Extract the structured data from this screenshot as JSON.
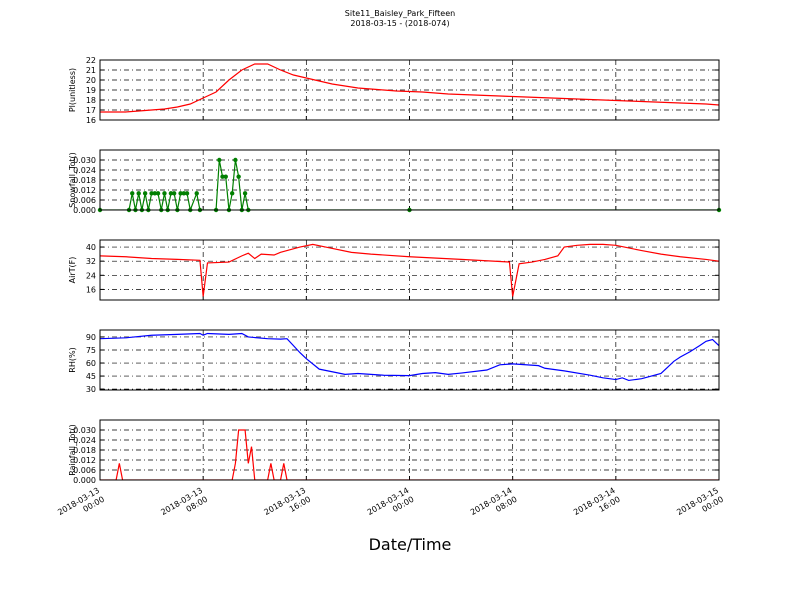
{
  "chart_data": [
    {
      "type": "line",
      "title": "Site11_Baisley_Park_Fifteen",
      "subtitle": "2018-03-15 - (2018-074)",
      "ylabel": "Pl(unitless)",
      "color": "#ff0000",
      "ylim": [
        16,
        22
      ],
      "yticks": [
        16,
        17,
        18,
        19,
        20,
        21,
        22
      ],
      "x": [
        "2018-03-13 00:00",
        "2018-03-13 01:00",
        "2018-03-13 02:00",
        "2018-03-13 03:00",
        "2018-03-13 04:00",
        "2018-03-13 05:00",
        "2018-03-13 06:00",
        "2018-03-13 07:00",
        "2018-03-13 08:00",
        "2018-03-13 09:00",
        "2018-03-13 10:00",
        "2018-03-13 11:00",
        "2018-03-13 12:00",
        "2018-03-13 13:00",
        "2018-03-13 14:00",
        "2018-03-13 15:00",
        "2018-03-13 16:00",
        "2018-03-13 17:00",
        "2018-03-13 18:00",
        "2018-03-13 19:00",
        "2018-03-13 20:00",
        "2018-03-13 21:00",
        "2018-03-13 22:00",
        "2018-03-13 23:00",
        "2018-03-14 00:00",
        "2018-03-14 01:00",
        "2018-03-14 02:00",
        "2018-03-14 03:00",
        "2018-03-14 04:00",
        "2018-03-14 05:00",
        "2018-03-14 06:00",
        "2018-03-14 07:00",
        "2018-03-14 08:00",
        "2018-03-14 09:00",
        "2018-03-14 10:00",
        "2018-03-14 11:00",
        "2018-03-14 12:00",
        "2018-03-14 13:00",
        "2018-03-14 14:00",
        "2018-03-14 15:00",
        "2018-03-14 16:00",
        "2018-03-14 17:00",
        "2018-03-14 18:00",
        "2018-03-14 19:00",
        "2018-03-14 20:00",
        "2018-03-14 21:00",
        "2018-03-14 22:00",
        "2018-03-14 23:00",
        "2018-03-15 00:00"
      ],
      "values": [
        16.8,
        16.8,
        16.8,
        16.9,
        17.0,
        17.1,
        17.3,
        17.6,
        18.2,
        18.8,
        20.0,
        21.0,
        21.6,
        21.6,
        21.0,
        20.5,
        20.2,
        19.9,
        19.6,
        19.4,
        19.2,
        19.1,
        19.0,
        18.9,
        18.85,
        18.8,
        18.7,
        18.6,
        18.55,
        18.5,
        18.45,
        18.4,
        18.35,
        18.3,
        18.25,
        18.2,
        18.15,
        18.1,
        18.05,
        18.0,
        17.95,
        17.9,
        17.85,
        17.8,
        17.75,
        17.7,
        17.65,
        17.6,
        17.5
      ]
    },
    {
      "type": "line",
      "ylabel": "Snowfall_Tot()",
      "color": "#007f00",
      "marker": true,
      "ylim": [
        0,
        0.036
      ],
      "yticks": [
        {
          "value": 0,
          "label": "0.000"
        },
        0.006,
        0.012,
        0.018,
        0.024,
        {
          "value": 0.03,
          "label": "0.030"
        }
      ],
      "x": [
        "2018-03-13 00:00",
        "2018-03-13 02:15",
        "2018-03-13 02:30",
        "2018-03-13 02:45",
        "2018-03-13 03:00",
        "2018-03-13 03:15",
        "2018-03-13 03:30",
        "2018-03-13 03:45",
        "2018-03-13 04:00",
        "2018-03-13 04:15",
        "2018-03-13 04:30",
        "2018-03-13 04:45",
        "2018-03-13 05:00",
        "2018-03-13 05:15",
        "2018-03-13 05:30",
        "2018-03-13 05:45",
        "2018-03-13 06:00",
        "2018-03-13 06:15",
        "2018-03-13 06:30",
        "2018-03-13 06:45",
        "2018-03-13 07:00",
        "2018-03-13 07:30",
        "2018-03-13 07:45",
        "2018-03-13 09:00",
        "2018-03-13 09:15",
        "2018-03-13 09:30",
        "2018-03-13 09:45",
        "2018-03-13 10:00",
        "2018-03-13 10:15",
        "2018-03-13 10:30",
        "2018-03-13 10:45",
        "2018-03-13 11:00",
        "2018-03-13 11:15",
        "2018-03-13 11:30",
        "2018-03-14 00:00",
        "2018-03-15 00:00"
      ],
      "values": [
        0,
        0,
        0.01,
        0,
        0.01,
        0,
        0.01,
        0,
        0.01,
        0.01,
        0.01,
        0,
        0.01,
        0,
        0.01,
        0.01,
        0,
        0.01,
        0.01,
        0.01,
        0,
        0.01,
        0,
        0,
        0.03,
        0.02,
        0.02,
        0,
        0.01,
        0.03,
        0.02,
        0,
        0.01,
        0,
        0,
        0
      ]
    },
    {
      "type": "line",
      "ylabel": "AirT(F)",
      "color": "#ff0000",
      "ylim": [
        10,
        44
      ],
      "yticks": [
        16,
        24,
        32,
        40
      ],
      "x": [
        "2018-03-13 00:00",
        "2018-03-13 02:00",
        "2018-03-13 04:00",
        "2018-03-13 06:00",
        "2018-03-13 07:45",
        "2018-03-13 08:00",
        "2018-03-13 08:20",
        "2018-03-13 10:00",
        "2018-03-13 11:00",
        "2018-03-13 11:30",
        "2018-03-13 12:00",
        "2018-03-13 12:30",
        "2018-03-13 13:30",
        "2018-03-13 14:00",
        "2018-03-13 15:30",
        "2018-03-13 16:30",
        "2018-03-13 17:30",
        "2018-03-13 19:30",
        "2018-03-13 21:00",
        "2018-03-14 00:00",
        "2018-03-14 04:00",
        "2018-03-14 07:45",
        "2018-03-14 08:00",
        "2018-03-14 08:30",
        "2018-03-14 09:30",
        "2018-03-14 10:30",
        "2018-03-14 11:30",
        "2018-03-14 12:00",
        "2018-03-14 13:00",
        "2018-03-14 14:00",
        "2018-03-14 15:00",
        "2018-03-14 16:00",
        "2018-03-14 17:00",
        "2018-03-14 18:00",
        "2018-03-14 19:30",
        "2018-03-14 21:00",
        "2018-03-14 23:00",
        "2018-03-15 00:00"
      ],
      "values": [
        35,
        34.5,
        33.5,
        33,
        32.5,
        12,
        31,
        31.5,
        35,
        36.5,
        33.5,
        36,
        35.5,
        37,
        40,
        41.5,
        40,
        37,
        36,
        34.5,
        33,
        31.5,
        12,
        30.5,
        31.5,
        33,
        35,
        40,
        41,
        41.5,
        41.5,
        41,
        39.5,
        38,
        36,
        34.5,
        33,
        32
      ]
    },
    {
      "type": "line",
      "ylabel": "RH(%)",
      "color": "#0000ff",
      "ylim": [
        29,
        98
      ],
      "yticks": [
        30,
        45,
        60,
        75,
        90
      ],
      "x": [
        "2018-03-13 00:00",
        "2018-03-13 02:00",
        "2018-03-13 04:00",
        "2018-03-13 06:00",
        "2018-03-13 07:45",
        "2018-03-13 08:00",
        "2018-03-13 08:20",
        "2018-03-13 10:00",
        "2018-03-13 11:00",
        "2018-03-13 11:30",
        "2018-03-13 13:00",
        "2018-03-13 14:00",
        "2018-03-13 14:30",
        "2018-03-13 15:00",
        "2018-03-13 15:30",
        "2018-03-13 16:00",
        "2018-03-13 17:00",
        "2018-03-13 18:00",
        "2018-03-13 19:00",
        "2018-03-13 20:00",
        "2018-03-13 22:00",
        "2018-03-14 00:00",
        "2018-03-14 01:00",
        "2018-03-14 02:00",
        "2018-03-14 03:00",
        "2018-03-14 04:00",
        "2018-03-14 06:00",
        "2018-03-14 07:00",
        "2018-03-14 08:00",
        "2018-03-14 09:00",
        "2018-03-14 10:00",
        "2018-03-14 10:30",
        "2018-03-14 12:00",
        "2018-03-14 14:00",
        "2018-03-14 15:00",
        "2018-03-14 16:00",
        "2018-03-14 16:30",
        "2018-03-14 17:00",
        "2018-03-14 18:00",
        "2018-03-14 19:30",
        "2018-03-14 20:00",
        "2018-03-14 20:30",
        "2018-03-14 21:00",
        "2018-03-14 21:45",
        "2018-03-14 22:30",
        "2018-03-14 23:00",
        "2018-03-14 23:30",
        "2018-03-15 00:00"
      ],
      "values": [
        88,
        89,
        92,
        93,
        94,
        92,
        94,
        93,
        94,
        90,
        88,
        87.5,
        88,
        80,
        72,
        65,
        53,
        50,
        47,
        48,
        46,
        45.5,
        48,
        49,
        47,
        48.5,
        52,
        58,
        59,
        58,
        57,
        54,
        51,
        46,
        43,
        41,
        43,
        40,
        42,
        48,
        55,
        62,
        67,
        73,
        80,
        85,
        87,
        80
      ]
    },
    {
      "type": "line",
      "ylabel": "Rainfall_Tot()",
      "color": "#ff0000",
      "xlabel": "Date/Time",
      "ylim": [
        0,
        0.036
      ],
      "yticks": [
        {
          "value": 0,
          "label": "0.000"
        },
        0.006,
        0.012,
        0.018,
        0.024,
        {
          "value": 0.03,
          "label": "0.030"
        }
      ],
      "xlim": [
        "2018-03-13 00:00",
        "2018-03-15 00:00"
      ],
      "xticks": [
        {
          "value": "2018-03-13 00:00",
          "label": [
            "2018-03-13",
            "00:00"
          ]
        },
        {
          "value": "2018-03-13 08:00",
          "label": [
            "2018-03-13",
            "08:00"
          ]
        },
        {
          "value": "2018-03-13 16:00",
          "label": [
            "2018-03-13",
            "16:00"
          ]
        },
        {
          "value": "2018-03-14 00:00",
          "label": [
            "2018-03-14",
            "00:00"
          ]
        },
        {
          "value": "2018-03-14 08:00",
          "label": [
            "2018-03-14",
            "08:00"
          ]
        },
        {
          "value": "2018-03-14 16:00",
          "label": [
            "2018-03-14",
            "16:00"
          ]
        },
        {
          "value": "2018-03-15 00:00",
          "label": [
            "2018-03-15",
            "00:00"
          ]
        }
      ],
      "x": [
        "2018-03-13 00:00",
        "2018-03-13 01:15",
        "2018-03-13 01:30",
        "2018-03-13 01:45",
        "2018-03-13 10:15",
        "2018-03-13 10:30",
        "2018-03-13 10:45",
        "2018-03-13 11:15",
        "2018-03-13 11:30",
        "2018-03-13 11:45",
        "2018-03-13 12:00",
        "2018-03-13 13:00",
        "2018-03-13 13:15",
        "2018-03-13 13:30",
        "2018-03-13 14:00",
        "2018-03-13 14:15",
        "2018-03-13 14:30",
        "2018-03-15 00:00"
      ],
      "values": [
        0,
        0,
        0.01,
        0,
        0,
        0.01,
        0.03,
        0.03,
        0.01,
        0.02,
        0,
        0,
        0.01,
        0,
        0,
        0.01,
        0,
        0
      ]
    }
  ]
}
